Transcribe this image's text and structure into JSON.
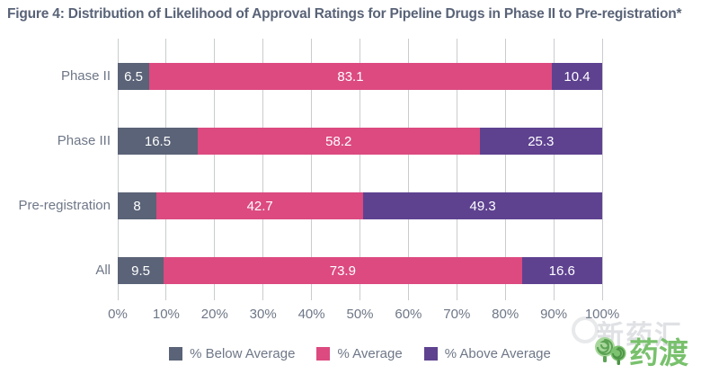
{
  "chart_data": {
    "type": "bar",
    "orientation": "horizontal",
    "stacked": true,
    "title": "Figure 4: Distribution of Likelihood of Approval Ratings for Pipeline Drugs in Phase II to Pre-registration*",
    "categories": [
      "Phase II",
      "Phase III",
      "Pre-registration",
      "All"
    ],
    "series": [
      {
        "name": "% Below Average",
        "color": "#5a6377",
        "values": [
          6.5,
          16.5,
          8,
          9.5
        ]
      },
      {
        "name": "% Average",
        "color": "#dc4a80",
        "values": [
          83.1,
          58.2,
          42.7,
          73.9
        ]
      },
      {
        "name": "% Above Average",
        "color": "#5e4290",
        "values": [
          10.4,
          25.3,
          49.3,
          16.6
        ]
      }
    ],
    "value_labels": [
      [
        "6.5",
        "83.1",
        "10.4"
      ],
      [
        "16.5",
        "58.2",
        "25.3"
      ],
      [
        "8",
        "42.7",
        "49.3"
      ],
      [
        "9.5",
        "73.9",
        "16.6"
      ]
    ],
    "x_ticks": [
      "0%",
      "10%",
      "20%",
      "30%",
      "40%",
      "50%",
      "60%",
      "70%",
      "80%",
      "90%",
      "100%"
    ],
    "xlim": [
      0,
      100
    ],
    "grid": "vertical",
    "legend_position": "bottom"
  },
  "watermark": {
    "brand_text": "药渡",
    "background_text": "新药汇"
  },
  "colors": {
    "title_text": "#596377",
    "axis_text": "#6e7787",
    "gridline": "#c9cbce",
    "bar_value_text": "#ffffff",
    "watermark_green": "#79c16d"
  }
}
